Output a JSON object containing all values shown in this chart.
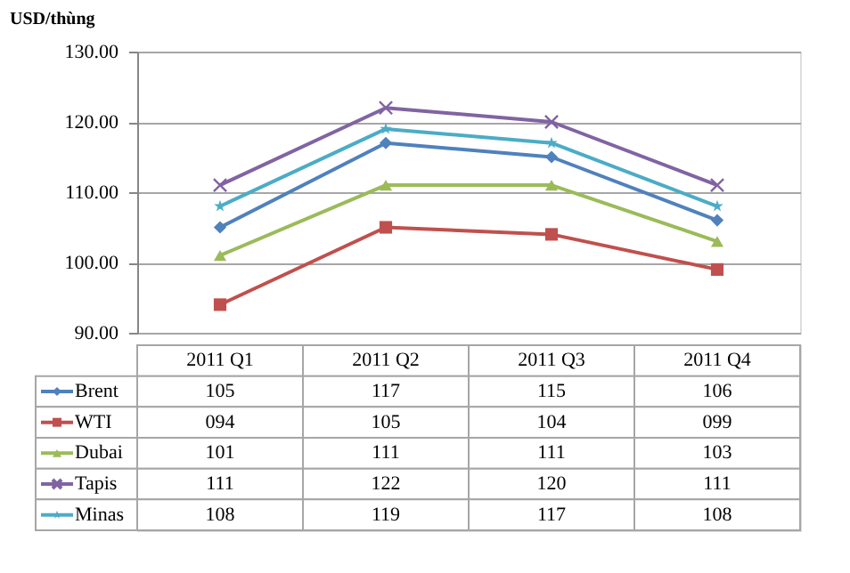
{
  "chart_data": {
    "type": "line",
    "ylabel": "USD/thùng",
    "categories": [
      "2011 Q1",
      "2011 Q2",
      "2011 Q3",
      "2011 Q4"
    ],
    "series": [
      {
        "name": "Brent",
        "color": "#4f81bd",
        "marker": "diamond",
        "values": [
          105,
          117,
          115,
          106
        ]
      },
      {
        "name": "WTI",
        "color": "#c0504d",
        "marker": "square",
        "values": [
          94,
          105,
          104,
          99
        ],
        "value_labels": [
          "094",
          "105",
          "104",
          "099"
        ]
      },
      {
        "name": "Dubai",
        "color": "#9bbb59",
        "marker": "triangle",
        "values": [
          101,
          111,
          111,
          103
        ]
      },
      {
        "name": "Tapis",
        "color": "#8064a2",
        "marker": "cross",
        "values": [
          111,
          122,
          120,
          111
        ]
      },
      {
        "name": "Minas",
        "color": "#4bacc6",
        "marker": "star",
        "values": [
          108,
          119,
          117,
          108
        ]
      }
    ],
    "ylim": [
      90,
      130
    ],
    "yticks": [
      {
        "value": 90,
        "label": "90.00"
      },
      {
        "value": 100,
        "label": "100.00"
      },
      {
        "value": 110,
        "label": "110.00"
      },
      {
        "value": 120,
        "label": "120.00"
      },
      {
        "value": 130,
        "label": "130.00"
      }
    ],
    "grid": "y",
    "legend": "bottom",
    "data_labels": true,
    "tick_labels": "y",
    "line_style": "solid"
  }
}
